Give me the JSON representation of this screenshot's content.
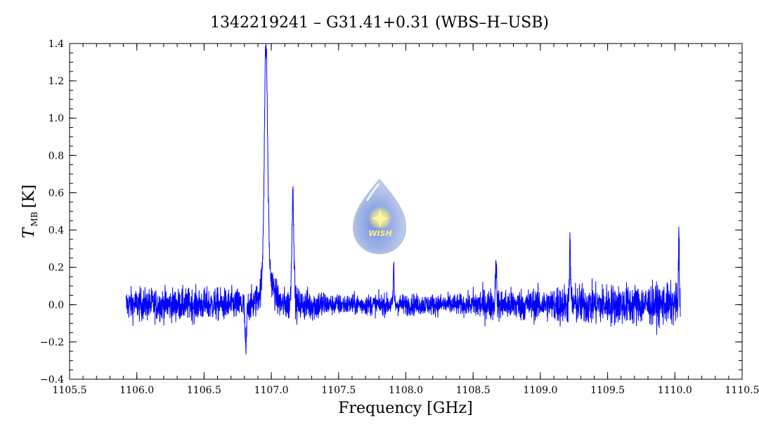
{
  "chart_data": {
    "type": "line",
    "title": "1342219241 – G31.41+0.31 (WBS–H–USB)",
    "xlabel": "Frequency [GHz]",
    "ylabel_main": "T",
    "ylabel_sub": "MB",
    "ylabel_unit": "[K]",
    "xlim": [
      1105.5,
      1110.5
    ],
    "ylim": [
      -0.4,
      1.4
    ],
    "x_ticks": [
      1105.5,
      1106.0,
      1106.5,
      1107.0,
      1107.5,
      1108.0,
      1108.5,
      1109.0,
      1109.5,
      1110.0,
      1110.5
    ],
    "x_tick_labels": [
      "1105.5",
      "1106.0",
      "1106.5",
      "1107.0",
      "1107.5",
      "1108.0",
      "1108.5",
      "1109.0",
      "1109.5",
      "1110.0",
      "1110.5"
    ],
    "y_ticks": [
      -0.4,
      -0.2,
      0.0,
      0.2,
      0.4,
      0.6,
      0.8,
      1.0,
      1.2,
      1.4
    ],
    "y_tick_labels": [
      "−0.4",
      "−0.2",
      "0.0",
      "0.2",
      "0.4",
      "0.6",
      "0.8",
      "1.0",
      "1.2",
      "1.4"
    ],
    "grid": false,
    "series": [
      {
        "color": "#0000ff",
        "x_range": [
          1105.92,
          1110.04
        ],
        "baseline": 0.0,
        "noise_rms": 0.06,
        "features": [
          {
            "center": 1106.96,
            "peak": 1.22
          },
          {
            "center": 1107.16,
            "peak": 0.57
          },
          {
            "center": 1106.81,
            "peak": -0.25
          },
          {
            "center": 1107.91,
            "peak": 0.22
          },
          {
            "center": 1108.67,
            "peak": 0.27
          },
          {
            "center": 1109.22,
            "peak": 0.29
          },
          {
            "center": 1110.03,
            "peak": 0.37
          }
        ]
      }
    ]
  },
  "logo": {
    "label": "WISH"
  }
}
